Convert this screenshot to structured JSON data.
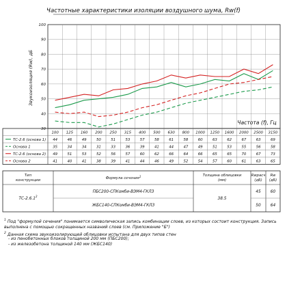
{
  "chart_data": {
    "type": "line",
    "title": "Частотные характеристики изоляции воздушного шума, Rw(f)",
    "ylabel": "Звукоизоляция (Rw), дБ",
    "xlabel": "Частота (f), Гц",
    "ylim": [
      30,
      100
    ],
    "yticks": [
      "30",
      "40",
      "50",
      "60",
      "70",
      "80",
      "90",
      "100"
    ],
    "categories": [
      "100",
      "125",
      "160",
      "200",
      "250",
      "315",
      "400",
      "500",
      "630",
      "800",
      "1000",
      "1250",
      "1600",
      "2000",
      "2500",
      "3150"
    ],
    "grid": true,
    "series": [
      {
        "name": "ТС-2.6 (основа 1)",
        "color": "#1a9a4a",
        "dash": "",
        "values": [
          44,
          46,
          49,
          50,
          51,
          53,
          57,
          58,
          61,
          58,
          60,
          63,
          62,
          67,
          63,
          69
        ]
      },
      {
        "name": "Основа 1",
        "color": "#1a9a4a",
        "dash": "5,3",
        "values": [
          35,
          34,
          34,
          31,
          33,
          36,
          39,
          41,
          44,
          47,
          49,
          51,
          53,
          55,
          56,
          58
        ]
      },
      {
        "name": "ТС-2.6 (основа 2)",
        "color": "#d42020",
        "dash": "",
        "values": [
          49,
          51,
          53,
          52,
          56,
          57,
          60,
          62,
          66,
          64,
          66,
          65,
          65,
          70,
          67,
          73
        ]
      },
      {
        "name": "Основа 2",
        "color": "#d42020",
        "dash": "5,3",
        "values": [
          41,
          40,
          41,
          38,
          39,
          41,
          44,
          46,
          49,
          52,
          54,
          57,
          60,
          61,
          63,
          65
        ]
      }
    ]
  },
  "construction_table": {
    "headers": {
      "type": "Тип конструкции",
      "formula": "Формула сечения",
      "formula_sup": "1",
      "thickness": "Толщина облицовки (мм)",
      "rw_calc": "Rwрасч (дБ)",
      "rw": "Rw (дБ)"
    },
    "type_value": "ТС-2.6.1",
    "type_sup": "2",
    "thickness_value": "38.5",
    "rows": [
      {
        "formula": "ПБС200-СПКомби-ВЭМ4-ГКЛЗ",
        "rw_calc": "45",
        "rw": "60"
      },
      {
        "formula": "ЖБС140-СПКомби-ВЭМ4-ГКЛЗ",
        "rw_calc": "50",
        "rw": "64"
      }
    ]
  },
  "notes": {
    "note1_num": "1",
    "note1": "Под \"формулой сечения\" понимается символическая запись комбинации слоев, из которых состоит конструкция. Запись выполнена с помощью сокращенных названий слоев (см. Приложение \"Б\")",
    "note2_num": "2",
    "note2": "Данная схема звукоизолирующей облицовки испытана для двух типов стен",
    "note2_a": "- из пенобетонных блоков толщиной 200 мм (ПБС200);",
    "note2_b": "- из железобетона толщиной 140 мм (ЖБС140)"
  }
}
